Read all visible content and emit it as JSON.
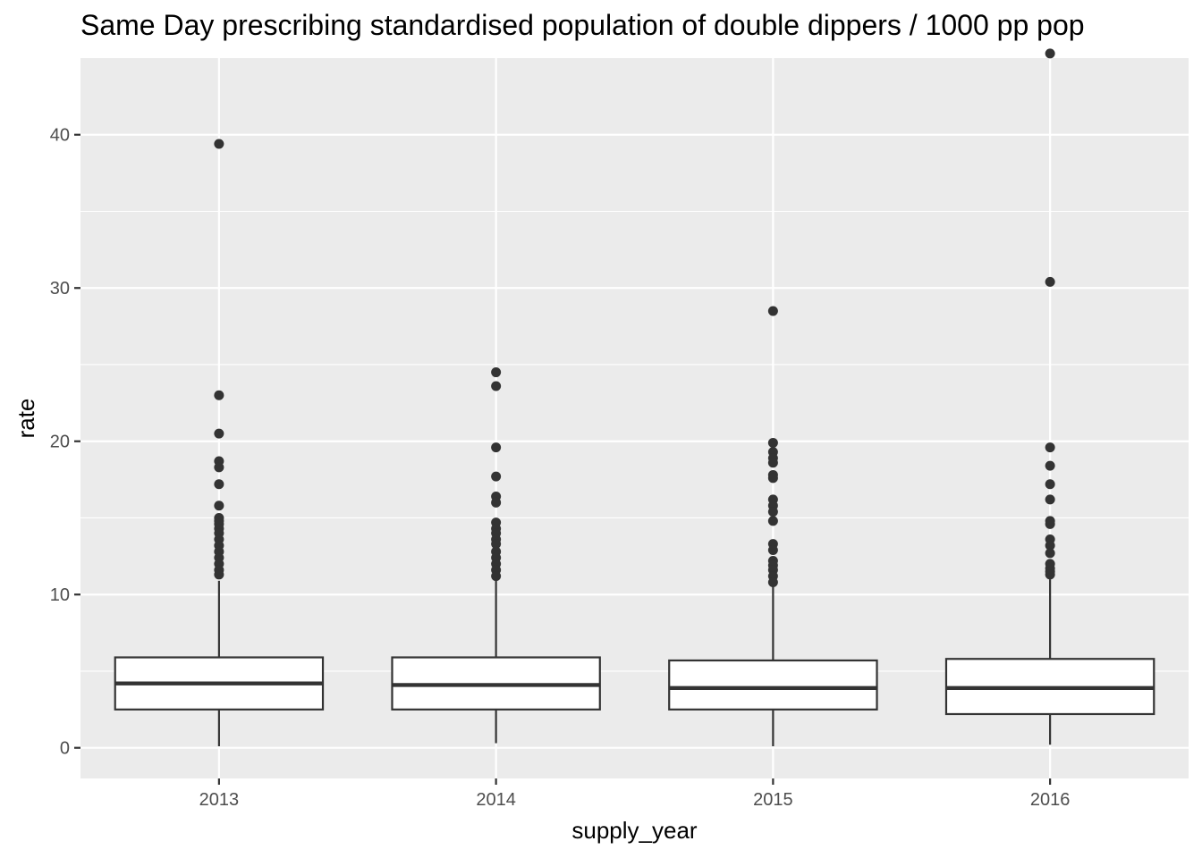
{
  "chart_data": {
    "type": "boxplot",
    "title": "Same Day prescribing standardised population of double dippers / 1000 pp pop",
    "xlabel": "supply_year",
    "ylabel": "rate",
    "categories": [
      "2013",
      "2014",
      "2015",
      "2016"
    ],
    "ylim": [
      -2,
      45
    ],
    "y_ticks": [
      0,
      10,
      20,
      30,
      40
    ],
    "grid": true,
    "legend": "none",
    "boxes": [
      {
        "category": "2013",
        "whisker_low": 0.1,
        "q1": 2.5,
        "median": 4.2,
        "q3": 5.9,
        "whisker_high": 10.9,
        "outliers": [
          39.4,
          23.0,
          20.5,
          18.7,
          18.3,
          17.2,
          15.8,
          15.0,
          14.8,
          14.6,
          14.3,
          14.0,
          13.6,
          13.2,
          12.8,
          12.4,
          12.0,
          11.6,
          11.3
        ]
      },
      {
        "category": "2014",
        "whisker_low": 0.3,
        "q1": 2.5,
        "median": 4.1,
        "q3": 5.9,
        "whisker_high": 11.0,
        "outliers": [
          24.5,
          23.6,
          19.6,
          17.7,
          16.4,
          16.0,
          14.7,
          14.3,
          14.0,
          13.6,
          13.3,
          12.8,
          12.4,
          12.0,
          11.6,
          11.2
        ]
      },
      {
        "category": "2015",
        "whisker_low": 0.1,
        "q1": 2.5,
        "median": 3.9,
        "q3": 5.7,
        "whisker_high": 10.6,
        "outliers": [
          28.5,
          19.9,
          19.3,
          18.9,
          18.6,
          17.8,
          17.6,
          16.2,
          15.8,
          15.4,
          14.8,
          13.3,
          12.9,
          12.2,
          11.9,
          11.6,
          11.2,
          10.8
        ]
      },
      {
        "category": "2016",
        "whisker_low": 0.2,
        "q1": 2.2,
        "median": 3.9,
        "q3": 5.8,
        "whisker_high": 11.0,
        "outliers": [
          45.3,
          30.4,
          19.6,
          18.4,
          17.2,
          16.2,
          14.8,
          14.6,
          13.6,
          13.2,
          12.7,
          12.0,
          11.7,
          11.5,
          11.3
        ]
      }
    ]
  }
}
